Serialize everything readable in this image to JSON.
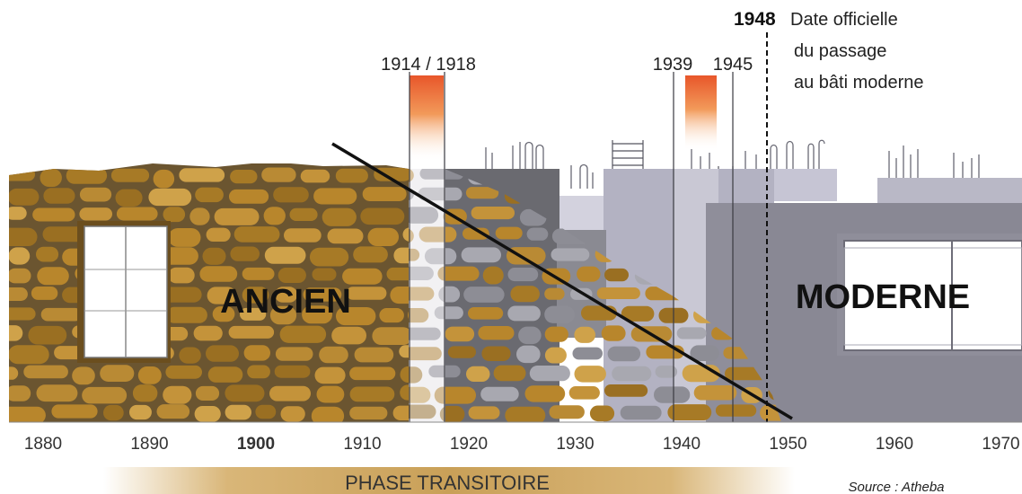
{
  "labels": {
    "ancien": "ANCIEN",
    "moderne": "MODERNE",
    "phase": "PHASE TRANSITOIRE",
    "source": "Source : Atheba"
  },
  "annotations": {
    "ww1": "1914 / 1918",
    "y1939": "1939",
    "y1945": "1945",
    "y1948": "1948",
    "official_line1": "Date officielle",
    "official_line2": "du passage",
    "official_line3": "au bâti moderne"
  },
  "axis": {
    "ticks": [
      {
        "label": "1880",
        "bold": false
      },
      {
        "label": "1890",
        "bold": false
      },
      {
        "label": "1900",
        "bold": true
      },
      {
        "label": "1910",
        "bold": false
      },
      {
        "label": "1920",
        "bold": false
      },
      {
        "label": "1930",
        "bold": false
      },
      {
        "label": "1940",
        "bold": false
      },
      {
        "label": "1950",
        "bold": false
      },
      {
        "label": "1960",
        "bold": false
      },
      {
        "label": "1970",
        "bold": false
      }
    ]
  },
  "colors": {
    "stone": "#b8862c",
    "stone_dark": "#8a6420",
    "grey_wall": "#8f8f9a",
    "grey_light": "#b9b8c6",
    "war_bar": "#e8562a",
    "gradient_gold": "#c9a058"
  }
}
